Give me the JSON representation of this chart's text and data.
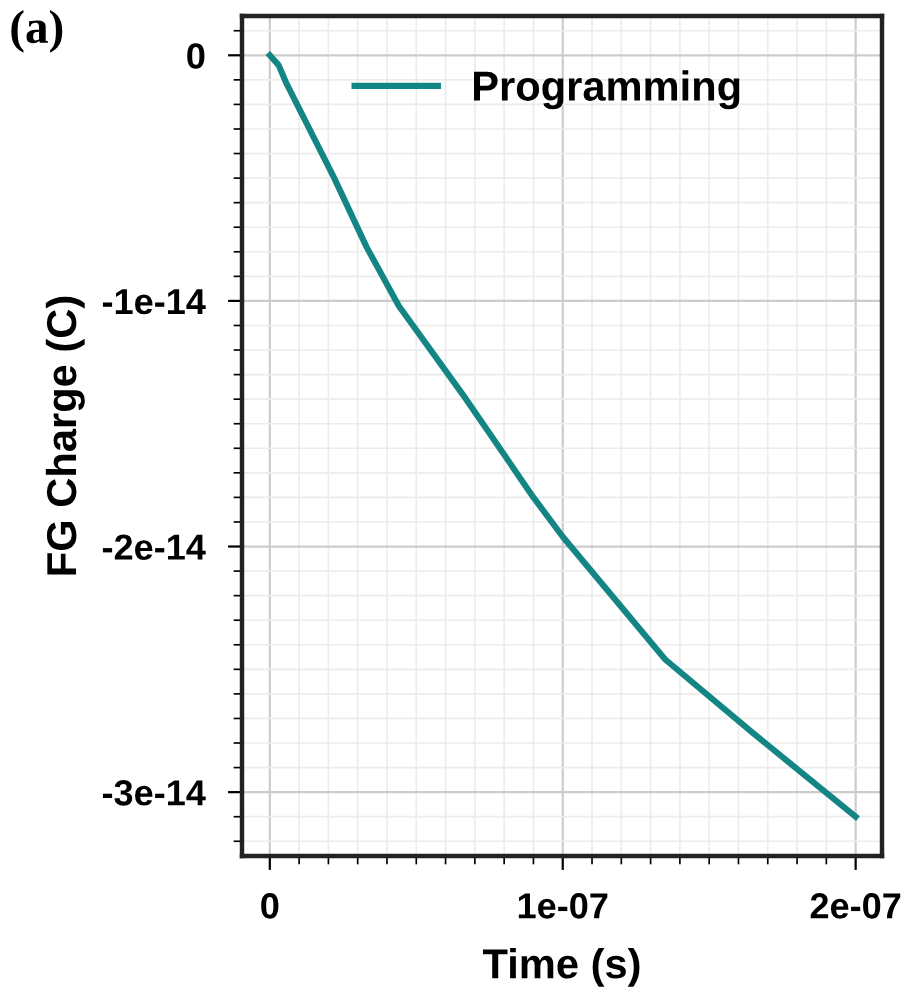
{
  "chart_data": {
    "type": "line",
    "xlabel": "Time (s)",
    "ylabel": "FG Charge (C)",
    "annotations": [
      "(a)"
    ],
    "xlim": [
      -9.5e-09,
      2.09e-07
    ],
    "xticks": [
      {
        "value": 0,
        "label": "0"
      },
      {
        "value": 1e-07,
        "label": "1e-07"
      },
      {
        "value": 2e-07,
        "label": "2e-07"
      }
    ],
    "ylim": [
      -3.26e-14,
      1.6e-15
    ],
    "yticks": [
      {
        "value": 0,
        "label": "0"
      },
      {
        "value": -1e-14,
        "label": "-1e-14"
      },
      {
        "value": -2e-14,
        "label": "-2e-14"
      },
      {
        "value": -3e-14,
        "label": "-3e-14"
      }
    ],
    "grid": true,
    "legend": "top right",
    "marker": "none",
    "line_style": "solid",
    "series": [
      {
        "name": "Programming",
        "color": "#148585",
        "x": [
          0,
          3e-09,
          5.5e-09,
          2.2e-08,
          3.3e-08,
          4.4e-08,
          6.7e-08,
          9e-08,
          1e-07,
          1.35e-07,
          1.65e-07,
          2e-07
        ],
        "values": [
          0,
          -4e-16,
          -1.1e-15,
          -5e-15,
          -7.8e-15,
          -1.02e-14,
          -1.4e-14,
          -1.8e-14,
          -1.96e-14,
          -2.46e-14,
          -2.76e-14,
          -3.1e-14
        ]
      }
    ]
  }
}
